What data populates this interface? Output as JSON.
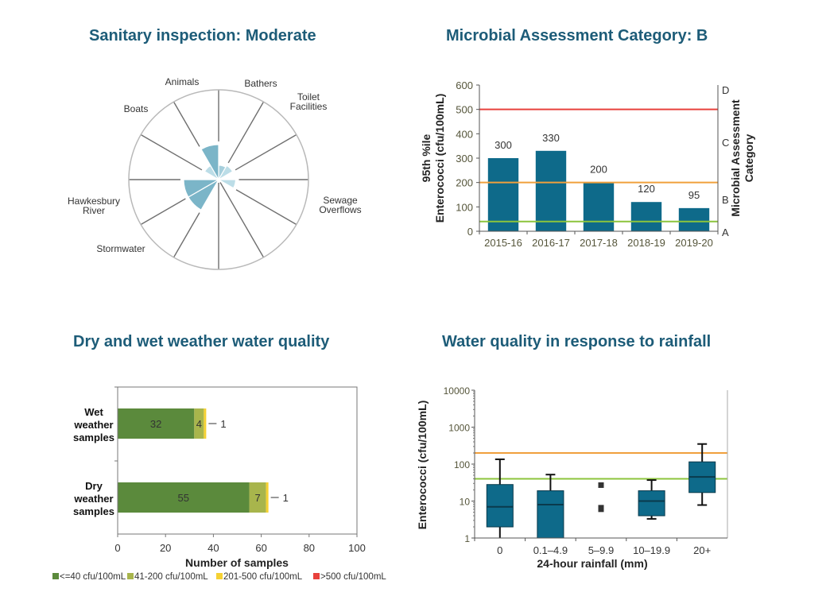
{
  "titles": {
    "sanitary": "Sanitary inspection: Moderate",
    "microbial": "Microbial Assessment Category: B",
    "drywet": "Dry and wet weather water quality",
    "rainfall": "Water quality in response to rainfall"
  },
  "colors": {
    "title": "#1d5c78",
    "bar": "#0e6a8a",
    "dark_slice": "#7bb5c8",
    "light_slice": "#bcdde7",
    "mid_slice": "#a6cfdc",
    "red": "#e8413c",
    "orange": "#f0a03c",
    "green_line": "#8cc43c",
    "cat1": "#5b8a3c",
    "cat2": "#a8b54c",
    "cat3": "#f5d133",
    "cat4": "#e8413c"
  },
  "chart_data": [
    {
      "type": "polar-area",
      "title": "Sanitary inspection: Moderate",
      "sectors": [
        {
          "label": "Bathers",
          "value": 0.16,
          "shade": "mid"
        },
        {
          "label": "Toilet Facilities",
          "value": 0.18,
          "shade": "light"
        },
        {
          "label": "",
          "value": 0,
          "shade": "light"
        },
        {
          "label": "Sewage Overflows",
          "value": 0.19,
          "shade": "light"
        },
        {
          "label": "",
          "value": 0,
          "shade": "light"
        },
        {
          "label": "",
          "value": 0,
          "shade": "light"
        },
        {
          "label": "",
          "value": 0,
          "shade": "light"
        },
        {
          "label": "Stormwater",
          "value": 0.39,
          "shade": "dark"
        },
        {
          "label": "Hawkesbury River",
          "value": 0.39,
          "shade": "dark"
        },
        {
          "label": "",
          "value": 0,
          "shade": "light"
        },
        {
          "label": "Boats",
          "value": 0.18,
          "shade": "light"
        },
        {
          "label": "Animals",
          "value": 0.39,
          "shade": "dark"
        }
      ],
      "labels": [
        {
          "text": [
            "Animals"
          ],
          "anchor": "middle"
        },
        {
          "text": [
            "Bathers"
          ],
          "anchor": "middle"
        },
        {
          "text": [
            "Toilet",
            "Facilities"
          ],
          "anchor": "middle"
        },
        {
          "text": [
            "Boats"
          ],
          "anchor": "middle"
        },
        {
          "text": [
            "Hawkesbury",
            "River"
          ],
          "anchor": "middle"
        },
        {
          "text": [
            "Sewage",
            "Overflows"
          ],
          "anchor": "middle"
        },
        {
          "text": [
            "Stormwater"
          ],
          "anchor": "middle"
        }
      ]
    },
    {
      "type": "bar",
      "title": "Microbial Assessment Category: B",
      "categories": [
        "2015-16",
        "2016-17",
        "2017-18",
        "2018-19",
        "2019-20"
      ],
      "values": [
        300,
        330,
        200,
        120,
        95
      ],
      "ylabel": [
        "95th %ile",
        "Enterococci (cfu/100mL)"
      ],
      "y2label": [
        "Microbial Assessment",
        "Category"
      ],
      "ylim": [
        0,
        600
      ],
      "yticks": [
        0,
        100,
        200,
        300,
        400,
        500,
        600
      ],
      "thresholds": [
        {
          "value": 500,
          "color": "red"
        },
        {
          "value": 200,
          "color": "orange"
        },
        {
          "value": 40,
          "color": "green"
        }
      ],
      "categories_right": [
        {
          "label": "A",
          "value": 0
        },
        {
          "label": "B",
          "value": 120
        },
        {
          "label": "C",
          "value": 355
        },
        {
          "label": "D",
          "value": 570
        }
      ]
    },
    {
      "type": "bar",
      "orientation": "horizontal-stacked",
      "title": "Dry and wet weather water quality",
      "categories": [
        [
          "Wet",
          "weather",
          "samples"
        ],
        [
          "Dry",
          "weather",
          "samples"
        ]
      ],
      "series": [
        {
          "name": "<=40 cfu/100mL",
          "values": [
            32,
            55
          ]
        },
        {
          "name": "41-200 cfu/100mL",
          "values": [
            4,
            7
          ]
        },
        {
          "name": "201-500 cfu/100mL",
          "values": [
            1,
            1
          ]
        },
        {
          "name": ">500 cfu/100mL",
          "values": [
            0,
            0
          ]
        }
      ],
      "xlabel": "Number of samples",
      "xlim": [
        0,
        100
      ],
      "xticks": [
        0,
        20,
        40,
        60,
        80,
        100
      ],
      "legend_position": "bottom"
    },
    {
      "type": "box",
      "title": "Water quality in response to rainfall",
      "categories": [
        "0",
        "0.1–4.9",
        "5–9.9",
        "10–19.9",
        "20+"
      ],
      "boxes": [
        {
          "min": 1,
          "q1": 2,
          "median": 7,
          "q3": 28,
          "max": 135
        },
        {
          "min": 1,
          "q1": 1,
          "median": 8,
          "q3": 19,
          "max": 52
        },
        {
          "points": [
            27,
            6,
            6.6
          ]
        },
        {
          "min": 3.3,
          "q1": 4,
          "median": 10,
          "q3": 19,
          "max": 37
        },
        {
          "min": 7.8,
          "q1": 17,
          "median": 45,
          "q3": 115,
          "max": 350
        }
      ],
      "xlabel": "24-hour rainfall (mm)",
      "ylabel": "Enterococci (cfu/100mL)",
      "yscale": "log",
      "ylim": [
        1,
        10000
      ],
      "yticks": [
        1,
        10,
        100,
        1000,
        10000
      ],
      "thresholds": [
        {
          "value": 200,
          "color": "orange"
        },
        {
          "value": 40,
          "color": "green"
        }
      ]
    }
  ]
}
